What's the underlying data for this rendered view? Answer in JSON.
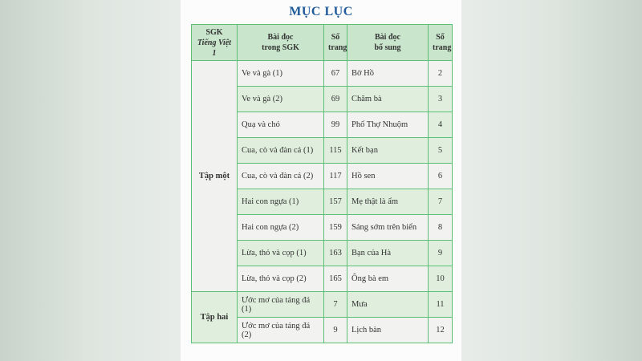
{
  "title": "MỤC LỤC",
  "headers": {
    "col1_line1": "SGK",
    "col1_line2": "Tiếng Việt 1",
    "col2_line1": "Bài đọc",
    "col2_line2": "trong SGK",
    "col3_line1": "Số",
    "col3_line2": "trang",
    "col4_line1": "Bài đọc",
    "col4_line2": "bổ sung",
    "col5_line1": "Số",
    "col5_line2": "trang"
  },
  "groups": [
    "Tập một",
    "Tập hai"
  ],
  "rows": [
    {
      "lesson": "Ve và gà (1)",
      "page": "67",
      "extra": "Bờ Hồ",
      "extra_page": "2"
    },
    {
      "lesson": "Ve và gà (2)",
      "page": "69",
      "extra": "Chăm bà",
      "extra_page": "3"
    },
    {
      "lesson": "Quạ và chó",
      "page": "99",
      "extra": "Phố Thợ Nhuộm",
      "extra_page": "4"
    },
    {
      "lesson": "Cua, cò và đàn cá (1)",
      "page": "115",
      "extra": "Kết bạn",
      "extra_page": "5"
    },
    {
      "lesson": "Cua, cò và đàn cá (2)",
      "page": "117",
      "extra": "Hồ sen",
      "extra_page": "6"
    },
    {
      "lesson": "Hai con ngựa (1)",
      "page": "157",
      "extra": "Mẹ thật là ấm",
      "extra_page": "7"
    },
    {
      "lesson": "Hai con ngựa (2)",
      "page": "159",
      "extra": "Sáng sớm trên biển",
      "extra_page": "8"
    },
    {
      "lesson": "Lừa, thỏ và cọp (1)",
      "page": "163",
      "extra": "Bạn của Hà",
      "extra_page": "9"
    },
    {
      "lesson": "Lừa, thỏ và cọp (2)",
      "page": "165",
      "extra": "Ông bà em",
      "extra_page": "10"
    },
    {
      "lesson": "Ước mơ của tảng đá (1)",
      "page": "7",
      "extra": "Mưa",
      "extra_page": "11"
    },
    {
      "lesson": "Ước mơ của tảng đá (2)",
      "page": "9",
      "extra": "Lịch bàn",
      "extra_page": "12"
    }
  ]
}
